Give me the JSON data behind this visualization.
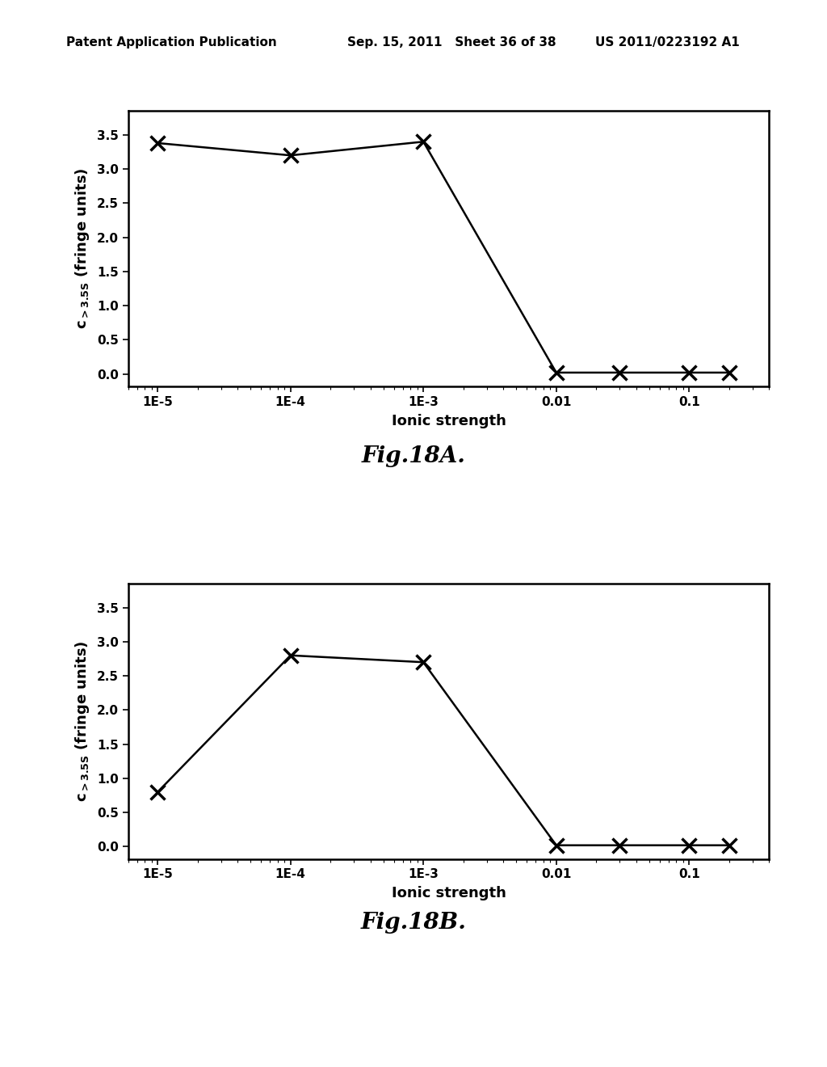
{
  "fig18A": {
    "x": [
      1e-05,
      0.0001,
      0.001,
      0.01,
      0.03,
      0.1,
      0.2
    ],
    "y": [
      3.38,
      3.2,
      3.4,
      0.02,
      0.02,
      0.02,
      0.02
    ],
    "xlabel": "Ionic strength",
    "ylabel": "c_{>3.5S} (fringe units)",
    "caption": "Fig.18A.",
    "ylim": [
      -0.18,
      3.85
    ],
    "yticks": [
      0.0,
      0.5,
      1.0,
      1.5,
      2.0,
      2.5,
      3.0,
      3.5
    ]
  },
  "fig18B": {
    "x": [
      1e-05,
      0.0001,
      0.001,
      0.01,
      0.03,
      0.1,
      0.2
    ],
    "y": [
      0.8,
      2.8,
      2.7,
      0.02,
      0.02,
      0.02,
      0.02
    ],
    "xlabel": "Ionic strength",
    "ylabel": "c_{>3.5S} (fringe units)",
    "caption": "Fig.18B.",
    "ylim": [
      -0.18,
      3.85
    ],
    "yticks": [
      0.0,
      0.5,
      1.0,
      1.5,
      2.0,
      2.5,
      3.0,
      3.5
    ]
  },
  "header_left": "Patent Application Publication",
  "header_mid": "Sep. 15, 2011   Sheet 36 of 38",
  "header_right": "US 2011/0223192 A1",
  "xtick_labels": [
    "1E-5",
    "1E-4",
    "1E-3",
    "0.01",
    "0.1"
  ],
  "xtick_positions": [
    1e-05,
    0.0001,
    0.001,
    0.01,
    0.1
  ],
  "background_color": "#ffffff",
  "line_color": "#000000",
  "marker": "x",
  "marker_size": 13,
  "marker_linewidth": 2.5,
  "line_width": 1.8,
  "font_size_label": 13,
  "font_size_tick": 11,
  "font_size_caption": 20,
  "font_size_header": 11
}
